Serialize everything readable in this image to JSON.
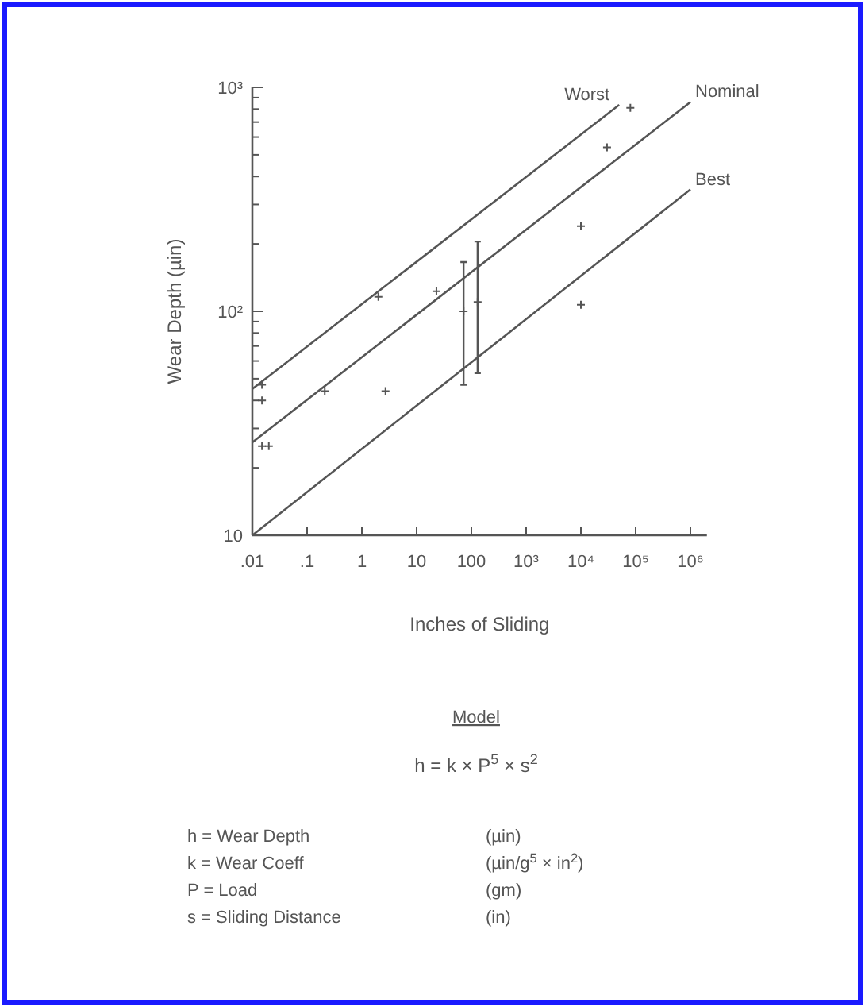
{
  "chart_data": {
    "type": "line",
    "xlabel": "Inches of Sliding",
    "ylabel": "Wear Depth (µin)",
    "log": "xy",
    "grid": false,
    "xlim": [
      0.01,
      2000000
    ],
    "ylim": [
      10,
      1000
    ],
    "xticks": [
      {
        "value": 0.01,
        "label": ".01"
      },
      {
        "value": 0.1,
        "label": ".1"
      },
      1,
      10,
      100,
      {
        "value": 1000,
        "label": "10³"
      },
      {
        "value": 10000,
        "label": "10⁴"
      },
      {
        "value": 100000,
        "label": "10⁵"
      },
      {
        "value": 1000000,
        "label": "10⁶"
      }
    ],
    "yticks": [
      10,
      {
        "value": 20,
        "label": null
      },
      {
        "value": 30,
        "label": null
      },
      {
        "value": 40,
        "label": null
      },
      {
        "value": 50,
        "label": null
      },
      {
        "value": 60,
        "label": null
      },
      {
        "value": 70,
        "label": null
      },
      {
        "value": 80,
        "label": null
      },
      {
        "value": 90,
        "label": null
      },
      {
        "value": 100,
        "label": "10²"
      },
      {
        "value": 200,
        "label": null
      },
      {
        "value": 300,
        "label": null
      },
      {
        "value": 400,
        "label": null
      },
      {
        "value": 500,
        "label": null
      },
      {
        "value": 600,
        "label": null
      },
      {
        "value": 700,
        "label": null
      },
      {
        "value": 800,
        "label": null
      },
      {
        "value": 900,
        "label": null
      },
      {
        "value": 1000,
        "label": "10³"
      }
    ],
    "series": [
      {
        "name": "Worst",
        "color": "#555555",
        "x": [
          0.01,
          50000
        ],
        "values": [
          45,
          835
        ]
      },
      {
        "name": "Nominal",
        "color": "#555555",
        "x": [
          0.01,
          1000000
        ],
        "values": [
          26,
          860
        ]
      },
      {
        "name": "Best",
        "color": "#555555",
        "x": [
          0.01,
          1000000
        ],
        "values": [
          10,
          350
        ]
      },
      {
        "type": "scatter",
        "marker": "cross",
        "color": "#555555",
        "x": [
          0.015,
          0.015,
          0.015,
          0.02,
          0.21,
          2.7,
          2,
          23,
          72,
          130,
          10000,
          10000,
          30000,
          80000
        ],
        "values": [
          47,
          40,
          25,
          25,
          44,
          44,
          116,
          123,
          100,
          110,
          107,
          240,
          540,
          810
        ],
        "errors": [
          null,
          null,
          null,
          null,
          null,
          null,
          null,
          null,
          [
            47,
            166
          ],
          [
            53,
            205
          ],
          null,
          null,
          null,
          null
        ]
      }
    ],
    "annotations": [
      "Model",
      "h = k × P$^{5}$ × s$^{2}$",
      "h = Wear Depth",
      "(µin)",
      "k = Wear Coeff",
      "(µin/g$^{5}$ × in$^{2}$)",
      "P = Load",
      "(gm)",
      "s = Sliding Distance",
      "(in)"
    ]
  }
}
